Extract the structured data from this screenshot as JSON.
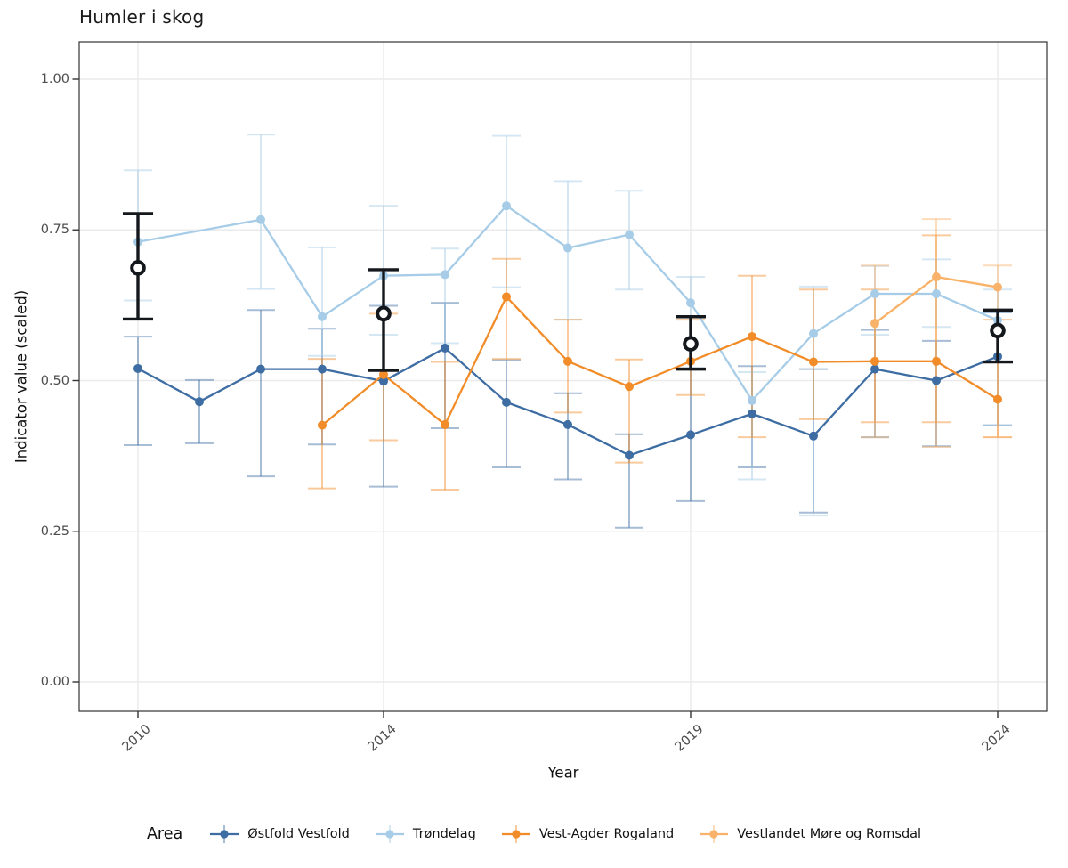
{
  "title": "Humler i skog",
  "axes": {
    "x_label": "Year",
    "y_label": "Indicator value (scaled)",
    "x_ticks": [
      {
        "label": "2010",
        "year": 2010
      },
      {
        "label": "2014",
        "year": 2014
      },
      {
        "label": "2019",
        "year": 2019
      },
      {
        "label": "2024",
        "year": 2024
      }
    ],
    "y_ticks": [
      {
        "label": "1.00",
        "value": 1.0
      },
      {
        "label": "0.75",
        "value": 0.75
      },
      {
        "label": "0.50",
        "value": 0.5
      },
      {
        "label": "0.25",
        "value": 0.25
      },
      {
        "label": "0.00",
        "value": 0.0
      }
    ]
  },
  "legend": {
    "title": "Area",
    "items": [
      {
        "label": "Østfold Vestfold",
        "color": "#3d6da3"
      },
      {
        "label": "Trøndelag",
        "color": "#a6cce7"
      },
      {
        "label": "Vest-Agder Rogaland",
        "color": "#f18c28"
      },
      {
        "label": "Vestlandet Møre og Romsdal",
        "color": "#f9b269"
      }
    ]
  },
  "chart_data": {
    "type": "line",
    "x_range": [
      2009,
      2024.8
    ],
    "y_range": [
      -0.05,
      1.06
    ],
    "grid": "major-only",
    "colors": {
      "grid": "#ebebeb",
      "panel_border": "#333333",
      "tick": "#333333",
      "summary": "#14181c"
    },
    "series": [
      {
        "name": "Østfold Vestfold",
        "color": "#3d6da3",
        "points": [
          {
            "year": 2010,
            "value": 0.52,
            "lo": 0.393,
            "hi": 0.573
          },
          {
            "year": 2011,
            "value": 0.465,
            "lo": 0.396,
            "hi": 0.501
          },
          {
            "year": 2012,
            "value": 0.519,
            "lo": 0.341,
            "hi": 0.617
          },
          {
            "year": 2013,
            "value": 0.519,
            "lo": 0.394,
            "hi": 0.586
          },
          {
            "year": 2014,
            "value": 0.499,
            "lo": 0.324,
            "hi": 0.624
          },
          {
            "year": 2015,
            "value": 0.554,
            "lo": 0.421,
            "hi": 0.629
          },
          {
            "year": 2016,
            "value": 0.464,
            "lo": 0.356,
            "hi": 0.534
          },
          {
            "year": 2017,
            "value": 0.427,
            "lo": 0.336,
            "hi": 0.479
          },
          {
            "year": 2018,
            "value": 0.376,
            "lo": 0.256,
            "hi": 0.411
          },
          {
            "year": 2019,
            "value": 0.41,
            "lo": 0.3,
            "hi": 0.519
          },
          {
            "year": 2020,
            "value": 0.445,
            "lo": 0.356,
            "hi": 0.524
          },
          {
            "year": 2021,
            "value": 0.408,
            "lo": 0.281,
            "hi": 0.519
          },
          {
            "year": 2022,
            "value": 0.519,
            "lo": 0.406,
            "hi": 0.584
          },
          {
            "year": 2023,
            "value": 0.5,
            "lo": 0.391,
            "hi": 0.566
          },
          {
            "year": 2024,
            "value": 0.54,
            "lo": 0.426,
            "hi": 0.613
          }
        ]
      },
      {
        "name": "Trøndelag",
        "color": "#a6cce7",
        "points": [
          {
            "year": 2010,
            "value": 0.73,
            "lo": 0.633,
            "hi": 0.849
          },
          {
            "year": 2012,
            "value": 0.767,
            "lo": 0.652,
            "hi": 0.908
          },
          {
            "year": 2013,
            "value": 0.606,
            "lo": 0.541,
            "hi": 0.721
          },
          {
            "year": 2014,
            "value": 0.674,
            "lo": 0.576,
            "hi": 0.79
          },
          {
            "year": 2015,
            "value": 0.676,
            "lo": 0.562,
            "hi": 0.719
          },
          {
            "year": 2016,
            "value": 0.79,
            "lo": 0.655,
            "hi": 0.906
          },
          {
            "year": 2017,
            "value": 0.72,
            "lo": 0.601,
            "hi": 0.831
          },
          {
            "year": 2018,
            "value": 0.742,
            "lo": 0.651,
            "hi": 0.815
          },
          {
            "year": 2019,
            "value": 0.629,
            "lo": 0.521,
            "hi": 0.672
          },
          {
            "year": 2020,
            "value": 0.467,
            "lo": 0.336,
            "hi": 0.514
          },
          {
            "year": 2021,
            "value": 0.578,
            "lo": 0.276,
            "hi": 0.656
          },
          {
            "year": 2022,
            "value": 0.644,
            "lo": 0.576,
            "hi": 0.69
          },
          {
            "year": 2023,
            "value": 0.644,
            "lo": 0.589,
            "hi": 0.701
          },
          {
            "year": 2024,
            "value": 0.6,
            "lo": 0.426,
            "hi": 0.651
          }
        ]
      },
      {
        "name": "Vest-Agder Rogaland",
        "color": "#f18c28",
        "points": [
          {
            "year": 2013,
            "value": 0.426,
            "lo": 0.321,
            "hi": 0.536
          },
          {
            "year": 2014,
            "value": 0.51,
            "lo": 0.401,
            "hi": 0.611
          },
          {
            "year": 2015,
            "value": 0.427,
            "lo": 0.319,
            "hi": 0.531
          },
          {
            "year": 2016,
            "value": 0.639,
            "lo": 0.536,
            "hi": 0.702
          },
          {
            "year": 2017,
            "value": 0.532,
            "lo": 0.447,
            "hi": 0.601
          },
          {
            "year": 2018,
            "value": 0.49,
            "lo": 0.364,
            "hi": 0.535
          },
          {
            "year": 2019,
            "value": 0.532,
            "lo": 0.476,
            "hi": 0.601
          },
          {
            "year": 2020,
            "value": 0.573,
            "lo": 0.406,
            "hi": 0.674
          },
          {
            "year": 2021,
            "value": 0.531,
            "lo": 0.436,
            "hi": 0.651
          },
          {
            "year": 2022,
            "value": 0.532,
            "lo": 0.431,
            "hi": 0.651
          },
          {
            "year": 2023,
            "value": 0.532,
            "lo": 0.431,
            "hi": 0.741
          },
          {
            "year": 2024,
            "value": 0.469,
            "lo": 0.406,
            "hi": 0.601
          }
        ]
      },
      {
        "name": "Vestlandet Møre og Romsdal",
        "color": "#f9b269",
        "points": [
          {
            "year": 2022,
            "value": 0.595,
            "lo": 0.406,
            "hi": 0.691
          },
          {
            "year": 2023,
            "value": 0.672,
            "lo": 0.39,
            "hi": 0.768
          },
          {
            "year": 2024,
            "value": 0.655,
            "lo": 0.406,
            "hi": 0.691
          }
        ]
      }
    ],
    "summary_points": {
      "name": "Overall indicator",
      "points": [
        {
          "year": 2010,
          "value": 0.687,
          "lo": 0.602,
          "hi": 0.777
        },
        {
          "year": 2014,
          "value": 0.611,
          "lo": 0.517,
          "hi": 0.684
        },
        {
          "year": 2019,
          "value": 0.561,
          "lo": 0.519,
          "hi": 0.606
        },
        {
          "year": 2024,
          "value": 0.583,
          "lo": 0.531,
          "hi": 0.617
        }
      ]
    }
  }
}
